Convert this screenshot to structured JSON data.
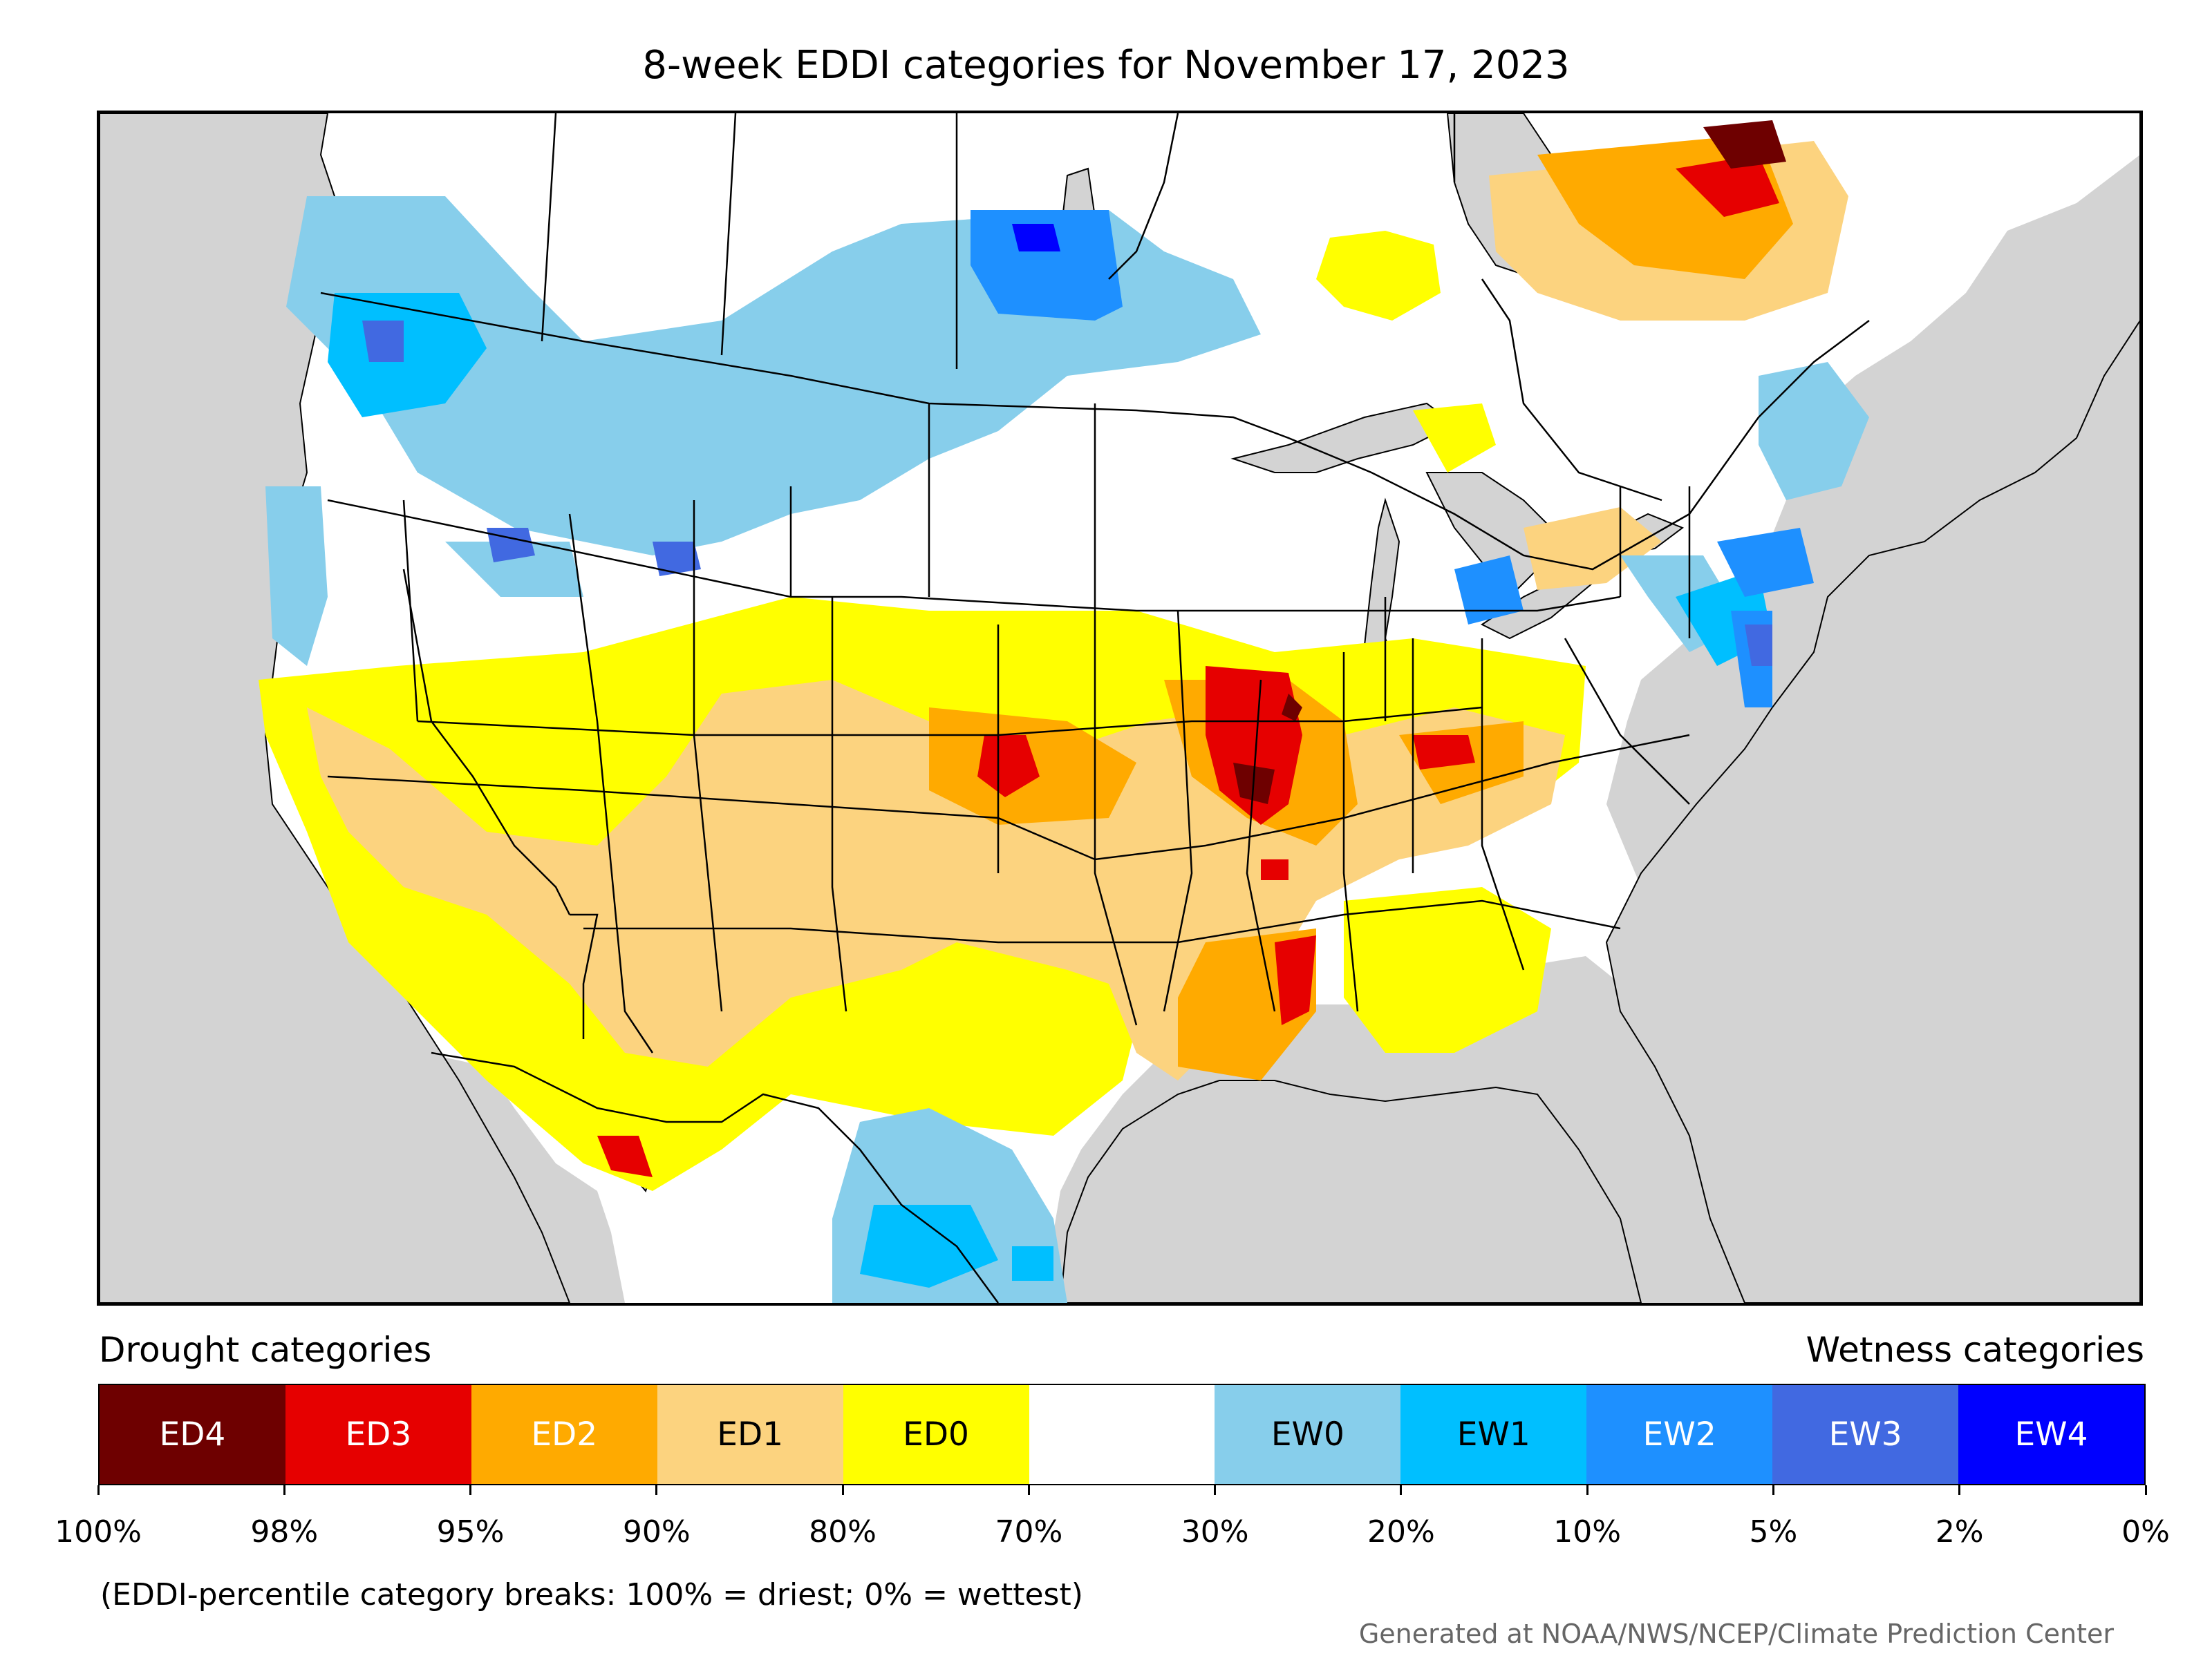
{
  "title": "8-week EDDI categories for November 17, 2023",
  "legend": {
    "drought_heading": "Drought categories",
    "wetness_heading": "Wetness categories",
    "categories": [
      {
        "label": "ED4",
        "color": "#6e0000",
        "text_color": "#ffffff"
      },
      {
        "label": "ED3",
        "color": "#e60000",
        "text_color": "#ffffff"
      },
      {
        "label": "ED2",
        "color": "#ffaa00",
        "text_color": "#ffffff"
      },
      {
        "label": "ED1",
        "color": "#fcd37f",
        "text_color": "#000000"
      },
      {
        "label": "ED0",
        "color": "#ffff00",
        "text_color": "#000000"
      },
      {
        "label": "",
        "color": "#ffffff",
        "text_color": "#000000"
      },
      {
        "label": "EW0",
        "color": "#87ceeb",
        "text_color": "#000000"
      },
      {
        "label": "EW1",
        "color": "#00bfff",
        "text_color": "#000000"
      },
      {
        "label": "EW2",
        "color": "#1e90ff",
        "text_color": "#ffffff"
      },
      {
        "label": "EW3",
        "color": "#4169e1",
        "text_color": "#ffffff"
      },
      {
        "label": "EW4",
        "color": "#0000ff",
        "text_color": "#ffffff"
      }
    ],
    "breaks": [
      "100%",
      "98%",
      "95%",
      "90%",
      "80%",
      "70%",
      "30%",
      "20%",
      "10%",
      "5%",
      "2%",
      "0%"
    ],
    "note": "(EDDI-percentile category breaks: 100% = driest; 0% = wettest)"
  },
  "credit": "Generated at NOAA/NWS/NCEP/Climate Prediction Center",
  "map": {
    "background_color": "#d3d3d3",
    "land_color": "#ffffff",
    "boundary_color": "#000000"
  }
}
